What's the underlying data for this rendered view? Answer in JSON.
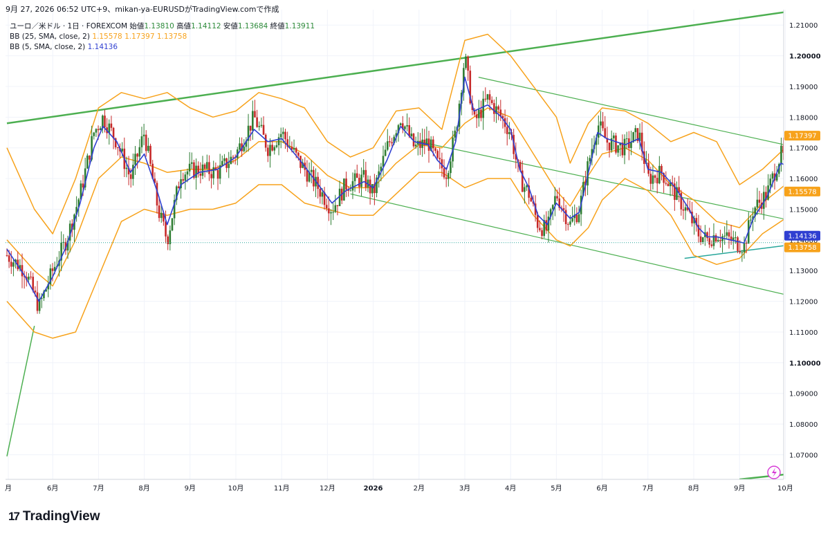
{
  "header": {
    "text": "9月 27, 2026 06:52 UTC+9、mikan-ya-EURUSDがTradingView.comで作成"
  },
  "legend": {
    "symbol": "ユーロ／米ドル · 1日 · FOREXCOM",
    "open_label": "始値",
    "open": "1.13810",
    "high_label": "高値",
    "high": "1.14112",
    "low_label": "安値",
    "low": "1.13684",
    "close_label": "終値",
    "close": "1.13911",
    "bb25_label": "BB (25, SMA, close, 2)",
    "bb25_mid": "1.15578",
    "bb25_up": "1.17397",
    "bb25_low": "1.13758",
    "bb5_label": "BB (5, SMA, close, 2)",
    "bb5_mid": "1.14136"
  },
  "brand": {
    "logo": "17",
    "name": "TradingView"
  },
  "colors": {
    "bb25": "#f7a21b",
    "bb5": "#2f3fd1",
    "trend": "#4caf50",
    "up": "#2e7d32",
    "down": "#c62828",
    "support": "#26a69a"
  },
  "chart_data": {
    "type": "line",
    "title": "ユーロ／米ドル · 1日 · FOREXCOM",
    "ylim": [
      1.062,
      1.215
    ],
    "y_ticks": [
      "1.21000",
      "1.20000",
      "1.19000",
      "1.18000",
      "1.17000",
      "1.16000",
      "1.15000",
      "1.14000",
      "1.13000",
      "1.12000",
      "1.11000",
      "1.10000",
      "1.09000",
      "1.08000",
      "1.07000"
    ],
    "x_ticks": [
      "月",
      "6月",
      "7月",
      "8月",
      "9月",
      "10月",
      "11月",
      "12月",
      "2026",
      "2月",
      "3月",
      "4月",
      "5月",
      "6月",
      "7月",
      "8月",
      "9月",
      "10月"
    ],
    "price_labels": [
      {
        "text": "1.17397",
        "value": 1.17397,
        "color": "#f7a21b"
      },
      {
        "text": "1.15578",
        "value": 1.15578,
        "color": "#f7a21b"
      },
      {
        "text": "1.14136",
        "value": 1.14136,
        "color": "#2f3fd1"
      },
      {
        "text": "1.13758",
        "value": 1.13758,
        "color": "#f7a21b"
      }
    ],
    "price_path": [
      [
        0,
        1.135
      ],
      [
        0.4,
        1.13
      ],
      [
        0.7,
        1.118
      ],
      [
        1.0,
        1.13
      ],
      [
        1.3,
        1.14
      ],
      [
        1.6,
        1.155
      ],
      [
        1.9,
        1.175
      ],
      [
        2.1,
        1.18
      ],
      [
        2.4,
        1.172
      ],
      [
        2.7,
        1.16
      ],
      [
        3.0,
        1.175
      ],
      [
        3.3,
        1.15
      ],
      [
        3.5,
        1.14
      ],
      [
        3.8,
        1.162
      ],
      [
        4.2,
        1.163
      ],
      [
        4.6,
        1.162
      ],
      [
        5.0,
        1.168
      ],
      [
        5.4,
        1.18
      ],
      [
        5.7,
        1.17
      ],
      [
        6.0,
        1.175
      ],
      [
        6.4,
        1.165
      ],
      [
        6.8,
        1.157
      ],
      [
        7.1,
        1.15
      ],
      [
        7.4,
        1.158
      ],
      [
        7.8,
        1.16
      ],
      [
        8.0,
        1.155
      ],
      [
        8.3,
        1.17
      ],
      [
        8.6,
        1.18
      ],
      [
        8.9,
        1.17
      ],
      [
        9.2,
        1.172
      ],
      [
        9.4,
        1.165
      ],
      [
        9.6,
        1.162
      ],
      [
        9.8,
        1.175
      ],
      [
        10.0,
        1.2
      ],
      [
        10.2,
        1.178
      ],
      [
        10.5,
        1.186
      ],
      [
        10.8,
        1.18
      ],
      [
        11.0,
        1.175
      ],
      [
        11.2,
        1.16
      ],
      [
        11.4,
        1.155
      ],
      [
        11.6,
        1.145
      ],
      [
        11.8,
        1.143
      ],
      [
        12.0,
        1.155
      ],
      [
        12.3,
        1.145
      ],
      [
        12.5,
        1.15
      ],
      [
        12.7,
        1.165
      ],
      [
        12.9,
        1.178
      ],
      [
        13.1,
        1.172
      ],
      [
        13.5,
        1.17
      ],
      [
        13.8,
        1.175
      ],
      [
        14.0,
        1.16
      ],
      [
        14.3,
        1.162
      ],
      [
        14.6,
        1.155
      ],
      [
        14.9,
        1.148
      ],
      [
        15.1,
        1.142
      ],
      [
        15.3,
        1.14
      ],
      [
        15.5,
        1.142
      ],
      [
        15.8,
        1.14
      ],
      [
        16.1,
        1.138
      ],
      [
        16.3,
        1.15
      ],
      [
        16.6,
        1.155
      ],
      [
        16.9,
        1.168
      ],
      [
        17.2,
        1.162
      ],
      [
        17.5,
        1.16
      ],
      [
        17.8,
        1.148
      ],
      [
        18.0,
        1.142
      ],
      [
        18.2,
        1.139
      ]
    ],
    "bb5_path": [
      [
        0,
        1.137
      ],
      [
        0.4,
        1.128
      ],
      [
        0.7,
        1.12
      ],
      [
        1.0,
        1.128
      ],
      [
        1.3,
        1.138
      ],
      [
        1.6,
        1.152
      ],
      [
        1.9,
        1.17
      ],
      [
        2.1,
        1.177
      ],
      [
        2.4,
        1.172
      ],
      [
        2.7,
        1.162
      ],
      [
        3.0,
        1.168
      ],
      [
        3.3,
        1.155
      ],
      [
        3.5,
        1.145
      ],
      [
        3.8,
        1.158
      ],
      [
        4.2,
        1.162
      ],
      [
        4.6,
        1.163
      ],
      [
        5.0,
        1.167
      ],
      [
        5.4,
        1.176
      ],
      [
        5.7,
        1.172
      ],
      [
        6.0,
        1.173
      ],
      [
        6.4,
        1.166
      ],
      [
        6.8,
        1.158
      ],
      [
        7.1,
        1.152
      ],
      [
        7.4,
        1.156
      ],
      [
        7.8,
        1.159
      ],
      [
        8.0,
        1.157
      ],
      [
        8.3,
        1.166
      ],
      [
        8.6,
        1.177
      ],
      [
        8.9,
        1.172
      ],
      [
        9.2,
        1.171
      ],
      [
        9.4,
        1.166
      ],
      [
        9.6,
        1.163
      ],
      [
        9.8,
        1.172
      ],
      [
        10.0,
        1.193
      ],
      [
        10.2,
        1.182
      ],
      [
        10.5,
        1.184
      ],
      [
        10.8,
        1.18
      ],
      [
        11.0,
        1.176
      ],
      [
        11.2,
        1.163
      ],
      [
        11.4,
        1.157
      ],
      [
        11.6,
        1.148
      ],
      [
        11.8,
        1.145
      ],
      [
        12.0,
        1.152
      ],
      [
        12.3,
        1.147
      ],
      [
        12.5,
        1.149
      ],
      [
        12.7,
        1.162
      ],
      [
        12.9,
        1.175
      ],
      [
        13.1,
        1.173
      ],
      [
        13.5,
        1.171
      ],
      [
        13.8,
        1.173
      ],
      [
        14.0,
        1.163
      ],
      [
        14.3,
        1.162
      ],
      [
        14.6,
        1.157
      ],
      [
        14.9,
        1.15
      ],
      [
        15.1,
        1.144
      ],
      [
        15.3,
        1.141
      ],
      [
        15.5,
        1.141
      ],
      [
        15.8,
        1.14
      ],
      [
        16.1,
        1.139
      ],
      [
        16.3,
        1.147
      ],
      [
        16.6,
        1.154
      ],
      [
        16.9,
        1.165
      ],
      [
        17.2,
        1.163
      ],
      [
        17.5,
        1.161
      ],
      [
        17.8,
        1.15
      ],
      [
        18.0,
        1.144
      ],
      [
        18.2,
        1.141
      ]
    ],
    "bb25_upper": [
      [
        0,
        1.17
      ],
      [
        0.6,
        1.15
      ],
      [
        1.0,
        1.142
      ],
      [
        1.5,
        1.16
      ],
      [
        2.0,
        1.183
      ],
      [
        2.5,
        1.188
      ],
      [
        3.0,
        1.186
      ],
      [
        3.5,
        1.188
      ],
      [
        4.0,
        1.183
      ],
      [
        4.5,
        1.18
      ],
      [
        5.0,
        1.182
      ],
      [
        5.5,
        1.188
      ],
      [
        6.0,
        1.186
      ],
      [
        6.5,
        1.183
      ],
      [
        7.0,
        1.172
      ],
      [
        7.5,
        1.167
      ],
      [
        8.0,
        1.17
      ],
      [
        8.5,
        1.182
      ],
      [
        9.0,
        1.183
      ],
      [
        9.5,
        1.176
      ],
      [
        10.0,
        1.205
      ],
      [
        10.5,
        1.207
      ],
      [
        11.0,
        1.2
      ],
      [
        11.5,
        1.19
      ],
      [
        12.0,
        1.18
      ],
      [
        12.3,
        1.165
      ],
      [
        12.7,
        1.178
      ],
      [
        13.0,
        1.183
      ],
      [
        13.5,
        1.182
      ],
      [
        14.0,
        1.178
      ],
      [
        14.5,
        1.172
      ],
      [
        15.0,
        1.175
      ],
      [
        15.5,
        1.172
      ],
      [
        16.0,
        1.158
      ],
      [
        16.5,
        1.163
      ],
      [
        17.0,
        1.17
      ],
      [
        17.5,
        1.169
      ],
      [
        18.0,
        1.172
      ],
      [
        18.3,
        1.174
      ]
    ],
    "bb25_mid": [
      [
        0,
        1.14
      ],
      [
        0.6,
        1.13
      ],
      [
        1.0,
        1.125
      ],
      [
        1.5,
        1.14
      ],
      [
        2.0,
        1.16
      ],
      [
        2.5,
        1.167
      ],
      [
        3.0,
        1.165
      ],
      [
        3.5,
        1.162
      ],
      [
        4.0,
        1.163
      ],
      [
        4.5,
        1.163
      ],
      [
        5.0,
        1.166
      ],
      [
        5.5,
        1.172
      ],
      [
        6.0,
        1.172
      ],
      [
        6.5,
        1.168
      ],
      [
        7.0,
        1.161
      ],
      [
        7.5,
        1.157
      ],
      [
        8.0,
        1.157
      ],
      [
        8.5,
        1.165
      ],
      [
        9.0,
        1.171
      ],
      [
        9.5,
        1.17
      ],
      [
        10.0,
        1.178
      ],
      [
        10.5,
        1.183
      ],
      [
        11.0,
        1.18
      ],
      [
        11.5,
        1.168
      ],
      [
        12.0,
        1.156
      ],
      [
        12.3,
        1.151
      ],
      [
        12.7,
        1.161
      ],
      [
        13.0,
        1.168
      ],
      [
        13.5,
        1.17
      ],
      [
        14.0,
        1.166
      ],
      [
        14.5,
        1.158
      ],
      [
        15.0,
        1.153
      ],
      [
        15.5,
        1.146
      ],
      [
        16.0,
        1.144
      ],
      [
        16.5,
        1.152
      ],
      [
        17.0,
        1.158
      ],
      [
        17.5,
        1.162
      ],
      [
        18.0,
        1.16
      ],
      [
        18.3,
        1.156
      ]
    ],
    "bb25_lower": [
      [
        0,
        1.12
      ],
      [
        0.6,
        1.11
      ],
      [
        1.0,
        1.108
      ],
      [
        1.5,
        1.11
      ],
      [
        2.0,
        1.128
      ],
      [
        2.5,
        1.146
      ],
      [
        3.0,
        1.15
      ],
      [
        3.5,
        1.148
      ],
      [
        4.0,
        1.15
      ],
      [
        4.5,
        1.15
      ],
      [
        5.0,
        1.152
      ],
      [
        5.5,
        1.158
      ],
      [
        6.0,
        1.158
      ],
      [
        6.5,
        1.152
      ],
      [
        7.0,
        1.15
      ],
      [
        7.5,
        1.148
      ],
      [
        8.0,
        1.148
      ],
      [
        8.5,
        1.155
      ],
      [
        9.0,
        1.162
      ],
      [
        9.5,
        1.162
      ],
      [
        10.0,
        1.157
      ],
      [
        10.5,
        1.16
      ],
      [
        11.0,
        1.16
      ],
      [
        11.5,
        1.148
      ],
      [
        12.0,
        1.14
      ],
      [
        12.3,
        1.138
      ],
      [
        12.7,
        1.144
      ],
      [
        13.0,
        1.153
      ],
      [
        13.5,
        1.16
      ],
      [
        14.0,
        1.156
      ],
      [
        14.5,
        1.148
      ],
      [
        15.0,
        1.135
      ],
      [
        15.5,
        1.132
      ],
      [
        16.0,
        1.134
      ],
      [
        16.5,
        1.142
      ],
      [
        17.0,
        1.147
      ],
      [
        17.5,
        1.15
      ],
      [
        18.0,
        1.148
      ],
      [
        18.3,
        1.138
      ]
    ],
    "trendlines": [
      {
        "from": [
          0,
          1.178
        ],
        "to": [
          18.3,
          1.217
        ],
        "color": "#4caf50",
        "width": 2.5
      },
      {
        "from": [
          0,
          1.0695
        ],
        "to": [
          0.6,
          1.112
        ],
        "color": "#4caf50",
        "width": 1.5
      },
      {
        "from": [
          16.0,
          1.062
        ],
        "to": [
          18.5,
          1.066
        ],
        "color": "#4caf50",
        "width": 2.5
      },
      {
        "from": [
          10.3,
          1.193
        ],
        "to": [
          18.5,
          1.166
        ],
        "color": "#4caf50",
        "width": 1.2
      },
      {
        "from": [
          9.0,
          1.172
        ],
        "to": [
          18.5,
          1.142
        ],
        "color": "#4caf50",
        "width": 1.2
      },
      {
        "from": [
          7.5,
          1.155
        ],
        "to": [
          18.5,
          1.117
        ],
        "color": "#4caf50",
        "width": 1.2
      },
      {
        "from": [
          14.8,
          1.134
        ],
        "to": [
          18.5,
          1.141
        ],
        "color": "#26a69a",
        "width": 1.5
      }
    ]
  }
}
